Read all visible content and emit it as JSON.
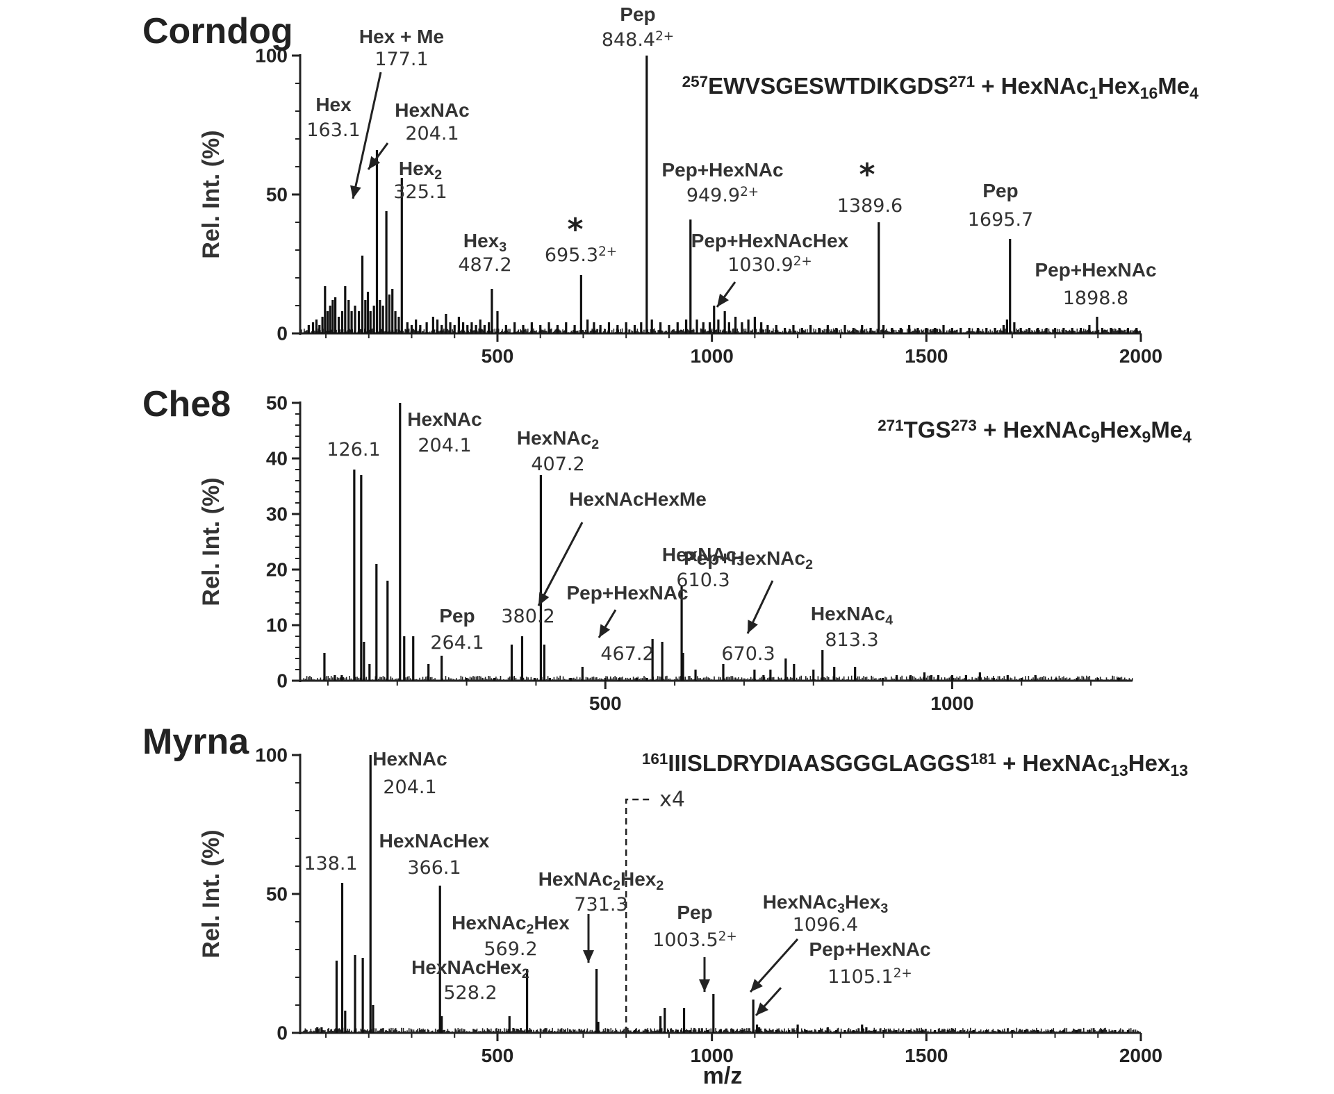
{
  "xlabel": "m/z",
  "chart_data": [
    {
      "type": "bar",
      "panel": "Corndog",
      "title": "Corndog",
      "ylabel": "Rel. Int. (%)",
      "xlabel": "",
      "xlim": [
        40,
        2000
      ],
      "ylim": [
        0,
        100
      ],
      "xticks": [
        500,
        1000,
        1500,
        2000
      ],
      "yticks": [
        0,
        50,
        100
      ],
      "sequence": {
        "pre": "257",
        "main": "EWVSGESWTDIKGDS",
        "post": "271",
        "tail": " + HexNAc",
        "s1": "1",
        "t2": "Hex",
        "s2": "16",
        "t3": "Me",
        "s3": "4"
      },
      "peaks": [
        [
          60,
          3
        ],
        [
          70,
          4
        ],
        [
          78,
          5
        ],
        [
          85,
          3
        ],
        [
          92,
          6
        ],
        [
          98,
          17
        ],
        [
          104,
          8
        ],
        [
          110,
          10
        ],
        [
          116,
          12
        ],
        [
          122,
          13
        ],
        [
          130,
          6
        ],
        [
          138,
          8
        ],
        [
          145,
          17
        ],
        [
          153,
          12
        ],
        [
          160,
          8
        ],
        [
          168,
          10
        ],
        [
          177,
          8
        ],
        [
          185,
          28
        ],
        [
          192,
          12
        ],
        [
          198,
          15
        ],
        [
          204,
          8
        ],
        [
          212,
          10
        ],
        [
          219,
          66
        ],
        [
          226,
          12
        ],
        [
          233,
          10
        ],
        [
          241,
          44
        ],
        [
          248,
          14
        ],
        [
          255,
          16
        ],
        [
          262,
          8
        ],
        [
          270,
          6
        ],
        [
          277,
          56
        ],
        [
          290,
          4
        ],
        [
          300,
          3
        ],
        [
          310,
          5
        ],
        [
          320,
          3
        ],
        [
          335,
          4
        ],
        [
          350,
          6
        ],
        [
          360,
          5
        ],
        [
          370,
          3
        ],
        [
          380,
          7
        ],
        [
          390,
          4
        ],
        [
          400,
          3
        ],
        [
          410,
          6
        ],
        [
          420,
          4
        ],
        [
          430,
          3
        ],
        [
          440,
          4
        ],
        [
          450,
          3
        ],
        [
          460,
          5
        ],
        [
          470,
          3
        ],
        [
          480,
          4
        ],
        [
          487,
          16
        ],
        [
          500,
          8
        ],
        [
          520,
          3
        ],
        [
          540,
          4
        ],
        [
          560,
          3
        ],
        [
          580,
          4
        ],
        [
          600,
          3
        ],
        [
          620,
          4
        ],
        [
          640,
          3
        ],
        [
          660,
          4
        ],
        [
          680,
          3
        ],
        [
          695,
          21
        ],
        [
          710,
          5
        ],
        [
          725,
          4
        ],
        [
          740,
          3
        ],
        [
          760,
          4
        ],
        [
          780,
          3
        ],
        [
          800,
          4
        ],
        [
          820,
          3
        ],
        [
          835,
          4
        ],
        [
          848,
          100
        ],
        [
          860,
          5
        ],
        [
          880,
          4
        ],
        [
          900,
          3
        ],
        [
          920,
          4
        ],
        [
          940,
          5
        ],
        [
          950,
          41
        ],
        [
          965,
          5
        ],
        [
          980,
          4
        ],
        [
          995,
          4
        ],
        [
          1005,
          10
        ],
        [
          1015,
          5
        ],
        [
          1030,
          8
        ],
        [
          1040,
          4
        ],
        [
          1055,
          6
        ],
        [
          1070,
          4
        ],
        [
          1085,
          5
        ],
        [
          1100,
          6
        ],
        [
          1115,
          4
        ],
        [
          1130,
          3
        ],
        [
          1150,
          3
        ],
        [
          1170,
          2
        ],
        [
          1190,
          3
        ],
        [
          1210,
          2
        ],
        [
          1230,
          3
        ],
        [
          1250,
          2
        ],
        [
          1270,
          3
        ],
        [
          1290,
          2
        ],
        [
          1310,
          3
        ],
        [
          1330,
          2
        ],
        [
          1350,
          3
        ],
        [
          1370,
          2
        ],
        [
          1389,
          40
        ],
        [
          1400,
          3
        ],
        [
          1420,
          2
        ],
        [
          1440,
          2
        ],
        [
          1460,
          3
        ],
        [
          1480,
          2
        ],
        [
          1500,
          2
        ],
        [
          1520,
          2
        ],
        [
          1540,
          3
        ],
        [
          1560,
          2
        ],
        [
          1580,
          2
        ],
        [
          1600,
          2
        ],
        [
          1620,
          2
        ],
        [
          1640,
          2
        ],
        [
          1660,
          2
        ],
        [
          1680,
          3
        ],
        [
          1688,
          5
        ],
        [
          1695,
          34
        ],
        [
          1705,
          4
        ],
        [
          1720,
          2
        ],
        [
          1740,
          2
        ],
        [
          1760,
          2
        ],
        [
          1780,
          2
        ],
        [
          1800,
          2
        ],
        [
          1820,
          2
        ],
        [
          1840,
          2
        ],
        [
          1860,
          2
        ],
        [
          1880,
          3
        ],
        [
          1898,
          6
        ],
        [
          1910,
          2
        ],
        [
          1930,
          2
        ],
        [
          1950,
          2
        ],
        [
          1970,
          2
        ],
        [
          1990,
          2
        ]
      ],
      "annotations": [
        {
          "name": "Hex",
          "value": "163.1",
          "sup": "",
          "sub": ""
        },
        {
          "name": "Hex + Me",
          "value": "177.1",
          "sup": "",
          "sub": ""
        },
        {
          "name": "HexNAc",
          "value": "204.1",
          "sup": "",
          "sub": ""
        },
        {
          "name": "Hex",
          "value": "325.1",
          "sup": "",
          "sub": "2"
        },
        {
          "name": "Hex",
          "value": "487.2",
          "sup": "",
          "sub": "3"
        },
        {
          "name": "",
          "value": "695.3",
          "sup": "2+",
          "sub": "",
          "star": "*"
        },
        {
          "name": "Pep",
          "value": "848.4",
          "sup": "2+",
          "sub": ""
        },
        {
          "name": "Pep+HexNAc",
          "value": "949.9",
          "sup": "2+",
          "sub": ""
        },
        {
          "name": "Pep+HexNAcHex",
          "value": "1030.9",
          "sup": "2+",
          "sub": ""
        },
        {
          "name": "",
          "value": "1389.6",
          "sup": "",
          "sub": "",
          "star": "*"
        },
        {
          "name": "Pep",
          "value": "1695.7",
          "sup": "",
          "sub": ""
        },
        {
          "name": "Pep+HexNAc",
          "value": "1898.8",
          "sup": "",
          "sub": ""
        }
      ]
    },
    {
      "type": "bar",
      "panel": "Che8",
      "title": "Che8",
      "ylabel": "Rel. Int. (%)",
      "xlabel": "",
      "xlim": [
        60,
        1260
      ],
      "ylim": [
        0,
        50
      ],
      "xticks": [
        500,
        1000
      ],
      "yticks": [
        0,
        10,
        20,
        30,
        40,
        50
      ],
      "sequence": {
        "pre": "271",
        "main": "TGS",
        "post": "273",
        "tail": " + HexNAc",
        "s1": "9",
        "t2": "Hex",
        "s2": "9",
        "t3": "Me",
        "s3": "4"
      },
      "peaks": [
        [
          95,
          5
        ],
        [
          110,
          1
        ],
        [
          120,
          1
        ],
        [
          138,
          38
        ],
        [
          148,
          37
        ],
        [
          152,
          7
        ],
        [
          160,
          3
        ],
        [
          170,
          21
        ],
        [
          186,
          18
        ],
        [
          204,
          50
        ],
        [
          210,
          8
        ],
        [
          223,
          8
        ],
        [
          245,
          3
        ],
        [
          264,
          4.5
        ],
        [
          300,
          0.5
        ],
        [
          340,
          0.5
        ],
        [
          365,
          6.5
        ],
        [
          380,
          8
        ],
        [
          398,
          0.5
        ],
        [
          407,
          37
        ],
        [
          412,
          6.5
        ],
        [
          420,
          0.5
        ],
        [
          450,
          0.5
        ],
        [
          467,
          2.5
        ],
        [
          500,
          0.5
        ],
        [
          520,
          0.5
        ],
        [
          545,
          0.5
        ],
        [
          560,
          0.5
        ],
        [
          568,
          7.5
        ],
        [
          582,
          7
        ],
        [
          610,
          17
        ],
        [
          612,
          5
        ],
        [
          630,
          2
        ],
        [
          670,
          3
        ],
        [
          715,
          2
        ],
        [
          728,
          1
        ],
        [
          738,
          2
        ],
        [
          760,
          4
        ],
        [
          772,
          3
        ],
        [
          800,
          2
        ],
        [
          813,
          5.5
        ],
        [
          830,
          2.5
        ],
        [
          860,
          2.5
        ],
        [
          900,
          0.5
        ],
        [
          920,
          1
        ],
        [
          940,
          1
        ],
        [
          960,
          1.5
        ],
        [
          970,
          1
        ],
        [
          980,
          1
        ],
        [
          1000,
          1
        ],
        [
          1020,
          1
        ],
        [
          1040,
          1.5
        ],
        [
          1060,
          0.5
        ],
        [
          1080,
          1
        ],
        [
          1100,
          0.5
        ],
        [
          1120,
          1
        ],
        [
          1150,
          0.5
        ],
        [
          1180,
          0.5
        ],
        [
          1210,
          0.5
        ],
        [
          1240,
          0.5
        ]
      ],
      "annotations": [
        {
          "name": "",
          "value": "126.1",
          "sup": "",
          "sub": ""
        },
        {
          "name": "HexNAc",
          "value": "204.1",
          "sup": "",
          "sub": ""
        },
        {
          "name": "Pep",
          "value": "264.1",
          "sup": "",
          "sub": ""
        },
        {
          "name": "HexNAcHexMe",
          "value": "380.2",
          "sup": "",
          "sub": ""
        },
        {
          "name": "HexNAc",
          "value": "407.2",
          "sup": "",
          "sub": "2"
        },
        {
          "name": "Pep+HexNAc",
          "value": "467.2",
          "sup": "",
          "sub": ""
        },
        {
          "name": "HexNAc",
          "value": "610.3",
          "sup": "",
          "sub": "3"
        },
        {
          "name": "Pep+HexNAc",
          "value": "670.3",
          "sup": "",
          "sub": "2"
        },
        {
          "name": "HexNAc",
          "value": "813.3",
          "sup": "",
          "sub": "4"
        }
      ]
    },
    {
      "type": "bar",
      "panel": "Myrna",
      "title": "Myrna",
      "ylabel": "Rel. Int. (%)",
      "xlabel": "m/z",
      "xlim": [
        40,
        2000
      ],
      "ylim": [
        0,
        100
      ],
      "xticks": [
        500,
        1000,
        1500,
        2000
      ],
      "yticks": [
        0,
        50,
        100
      ],
      "magnify_label": "x4",
      "magnify_from": 800,
      "sequence": {
        "pre": "161",
        "main": "IIISLDRYDIAASGGGLAGGS",
        "post": "181",
        "tail": " + HexNAc",
        "s1": "13",
        "t2": "Hex",
        "s2": "13",
        "t3": "",
        "s3": ""
      },
      "peaks": [
        [
          80,
          2
        ],
        [
          90,
          2
        ],
        [
          125,
          26
        ],
        [
          138,
          54
        ],
        [
          145,
          8
        ],
        [
          168,
          28
        ],
        [
          186,
          27
        ],
        [
          204,
          100
        ],
        [
          210,
          10
        ],
        [
          366,
          53
        ],
        [
          370,
          6
        ],
        [
          528,
          6
        ],
        [
          569,
          23
        ],
        [
          731,
          23
        ],
        [
          735,
          4
        ],
        [
          800,
          2
        ],
        [
          820,
          1
        ],
        [
          850,
          1
        ],
        [
          880,
          6
        ],
        [
          890,
          9
        ],
        [
          920,
          1
        ],
        [
          935,
          9
        ],
        [
          950,
          1
        ],
        [
          970,
          1
        ],
        [
          990,
          1
        ],
        [
          1003.5,
          14
        ],
        [
          1020,
          1
        ],
        [
          1050,
          1
        ],
        [
          1070,
          1
        ],
        [
          1096.4,
          12
        ],
        [
          1105.1,
          3
        ],
        [
          1110,
          2
        ],
        [
          1150,
          1
        ],
        [
          1180,
          1
        ],
        [
          1200,
          3
        ],
        [
          1220,
          1
        ],
        [
          1250,
          1
        ],
        [
          1270,
          2
        ],
        [
          1290,
          1
        ],
        [
          1310,
          1
        ],
        [
          1330,
          1
        ],
        [
          1350,
          3
        ],
        [
          1360,
          2
        ],
        [
          1380,
          1
        ],
        [
          1400,
          1
        ],
        [
          1430,
          1
        ],
        [
          1460,
          1
        ],
        [
          1490,
          1
        ],
        [
          1520,
          1
        ],
        [
          1550,
          1
        ],
        [
          1580,
          1
        ],
        [
          1610,
          1
        ],
        [
          1640,
          1
        ],
        [
          1670,
          1
        ],
        [
          1700,
          1
        ],
        [
          1730,
          1
        ],
        [
          1760,
          1
        ],
        [
          1790,
          1
        ],
        [
          1820,
          1
        ],
        [
          1850,
          1
        ],
        [
          1880,
          1
        ],
        [
          1910,
          1
        ],
        [
          1940,
          1
        ],
        [
          1970,
          1
        ]
      ],
      "annotations": [
        {
          "name": "",
          "value": "138.1",
          "sup": "",
          "sub": ""
        },
        {
          "name": "HexNAc",
          "value": "204.1",
          "sup": "",
          "sub": ""
        },
        {
          "name": "HexNAcHex",
          "value": "366.1",
          "sup": "",
          "sub": ""
        },
        {
          "name": "HexNAcHex",
          "value": "528.2",
          "sup": "",
          "sub": "2"
        },
        {
          "name": "HexNAc",
          "value": "569.2",
          "sup": "",
          "sub": "2",
          "name2": "Hex"
        },
        {
          "name": "HexNAc",
          "value": "731.3",
          "sup": "",
          "sub": "2",
          "name2": "Hex",
          "sub2": "2"
        },
        {
          "name": "Pep",
          "value": "1003.5",
          "sup": "2+",
          "sub": ""
        },
        {
          "name": "HexNAc",
          "value": "1096.4",
          "sup": "",
          "sub": "3",
          "name2": "Hex",
          "sub2": "3"
        },
        {
          "name": "Pep+HexNAc",
          "value": "1105.1",
          "sup": "2+",
          "sub": ""
        }
      ]
    }
  ]
}
